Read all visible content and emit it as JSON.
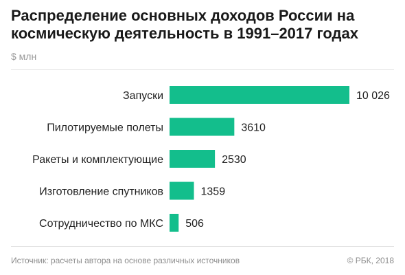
{
  "header": {
    "title": "Распределение основных доходов России на космическую деятельность в 1991–2017 годах",
    "unit": "$ млн"
  },
  "footer": {
    "source": "Источник: расчеты автора на основе различных источников",
    "copyright": "© РБК, 2018"
  },
  "chart_data": {
    "type": "bar",
    "orientation": "horizontal",
    "categories": [
      "Запуски",
      "Пилотируемые полеты",
      "Ракеты и комплектующие",
      "Изготовление спутников",
      "Сотрудничество по МКС"
    ],
    "values": [
      10026,
      3610,
      2530,
      1359,
      506
    ],
    "value_labels": [
      "10 026",
      "3610",
      "2530",
      "1359",
      "506"
    ],
    "bar_color": "#13be8c",
    "grid": false,
    "legend": "none"
  }
}
